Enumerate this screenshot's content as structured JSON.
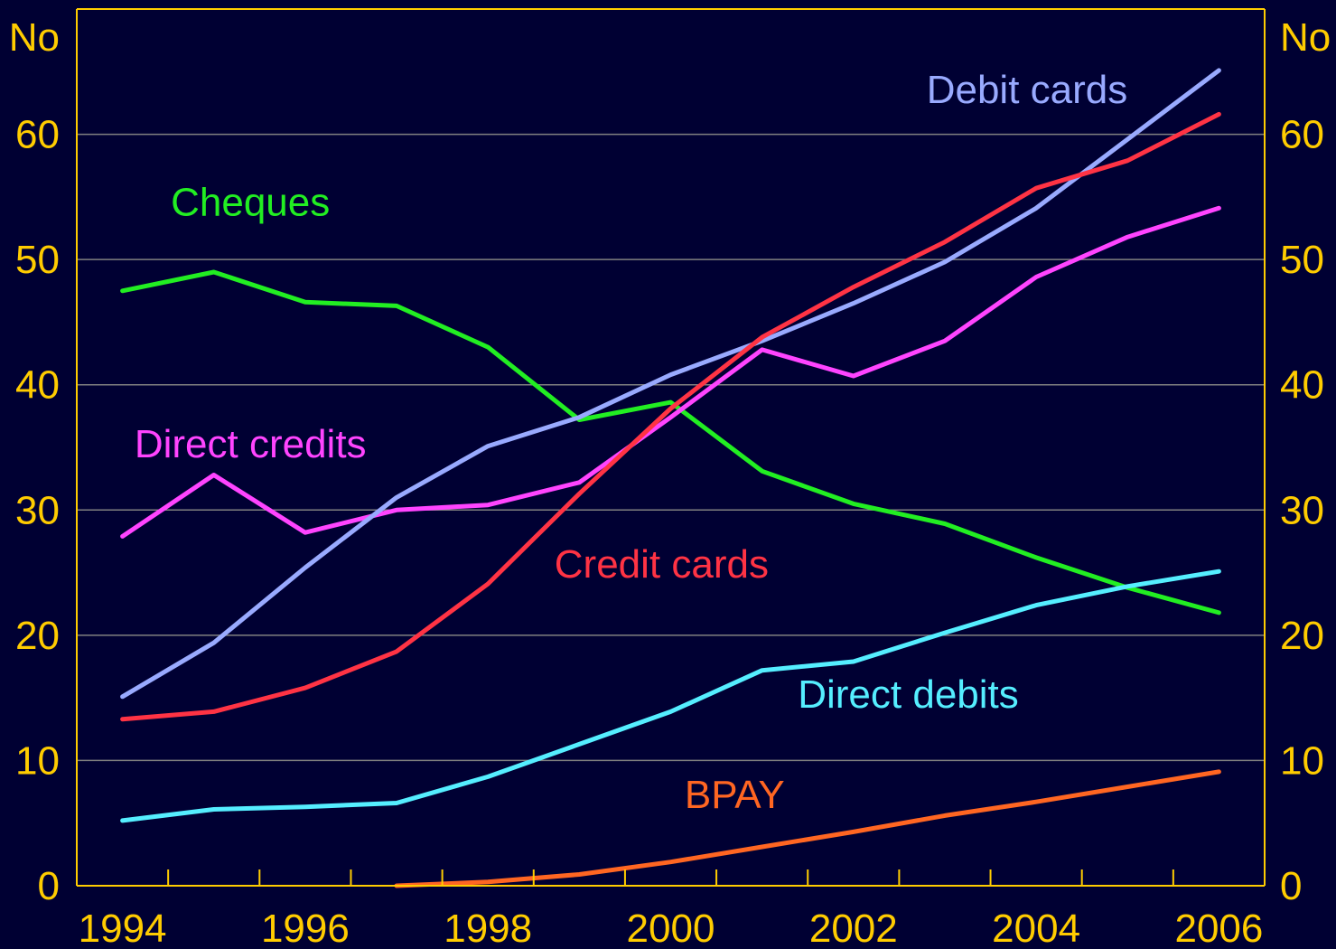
{
  "chart_data": {
    "type": "line",
    "left_unit": "No",
    "right_unit": "No",
    "x": [
      1994,
      1995,
      1996,
      1997,
      1998,
      1999,
      2000,
      2001,
      2002,
      2003,
      2004,
      2005,
      2006
    ],
    "x_ticks": [
      "1994",
      "1996",
      "1998",
      "2000",
      "2002",
      "2004",
      "2006"
    ],
    "x_tick_values": [
      1994,
      1996,
      1998,
      2000,
      2002,
      2004,
      2006
    ],
    "y_ticks": [
      "0",
      "10",
      "20",
      "30",
      "40",
      "50",
      "60"
    ],
    "y_tick_values": [
      0,
      10,
      20,
      30,
      40,
      50,
      60
    ],
    "xlim": [
      1993.5,
      2006.5
    ],
    "ylim": [
      0,
      70
    ],
    "grid": true,
    "colors": {
      "background": "#000033",
      "text": "#ffcc00",
      "axis": "#ffcc00",
      "grid": "#808080"
    },
    "series": [
      {
        "name": "Cheques",
        "color": "#22ee22",
        "values": [
          47.5,
          49,
          46.6,
          46.3,
          43,
          37.2,
          38.6,
          33.1,
          30.5,
          28.9,
          26.2,
          23.8,
          21.8
        ]
      },
      {
        "name": "Direct credits",
        "color": "#ff44ff",
        "values": [
          27.9,
          32.8,
          28.2,
          30,
          30.4,
          32.2,
          37.4,
          42.8,
          40.7,
          43.5,
          48.6,
          51.8,
          54.1
        ]
      },
      {
        "name": "Debit cards",
        "color": "#99aaff",
        "values": [
          15.1,
          19.4,
          25.4,
          31,
          35.1,
          37.4,
          40.8,
          43.5,
          46.5,
          49.8,
          54.1,
          59.6,
          65.1
        ]
      },
      {
        "name": "Credit cards",
        "color": "#ff3344",
        "values": [
          13.3,
          13.9,
          15.8,
          18.7,
          24.1,
          31.3,
          38.1,
          43.8,
          47.8,
          51.4,
          55.7,
          57.9,
          61.6
        ]
      },
      {
        "name": "Direct debits",
        "color": "#55eeff",
        "values": [
          5.2,
          6.1,
          6.3,
          6.6,
          8.7,
          11.3,
          13.9,
          17.2,
          17.9,
          20.2,
          22.4,
          23.9,
          25.1
        ]
      },
      {
        "name": "BPAY",
        "color": "#ff6622",
        "values": [
          null,
          null,
          null,
          0,
          0.3,
          0.9,
          1.9,
          3.1,
          4.3,
          5.6,
          6.7,
          7.9,
          9.1
        ]
      }
    ]
  }
}
